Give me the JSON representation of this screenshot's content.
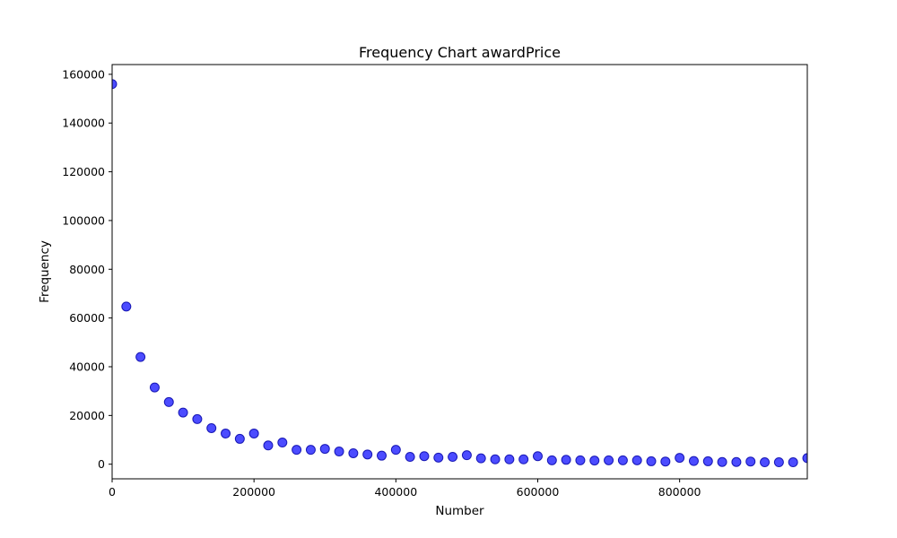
{
  "chart_data": {
    "type": "scatter",
    "title": "Frequency Chart awardPrice",
    "xlabel": "Number",
    "ylabel": "Frequency",
    "xlim": [
      0,
      980000
    ],
    "ylim": [
      -6000,
      164000
    ],
    "xticks": [
      0,
      200000,
      400000,
      600000,
      800000
    ],
    "xtick_labels": [
      "0",
      "200000",
      "400000",
      "600000",
      "800000"
    ],
    "yticks": [
      0,
      20000,
      40000,
      60000,
      80000,
      100000,
      120000,
      140000,
      160000
    ],
    "ytick_labels": [
      "0",
      "20000",
      "40000",
      "60000",
      "80000",
      "100000",
      "120000",
      "140000",
      "160000"
    ],
    "grid": false,
    "marker_color": "#0000ff",
    "marker_edge_color": "#0000a8",
    "points": [
      [
        0,
        156000
      ],
      [
        20000,
        64700
      ],
      [
        40000,
        44000
      ],
      [
        60000,
        31500
      ],
      [
        80000,
        25500
      ],
      [
        100000,
        21200
      ],
      [
        120000,
        18500
      ],
      [
        140000,
        14800
      ],
      [
        160000,
        12600
      ],
      [
        180000,
        10400
      ],
      [
        200000,
        12600
      ],
      [
        220000,
        7700
      ],
      [
        240000,
        8900
      ],
      [
        260000,
        5900
      ],
      [
        280000,
        5900
      ],
      [
        300000,
        6300
      ],
      [
        320000,
        5200
      ],
      [
        340000,
        4500
      ],
      [
        360000,
        4000
      ],
      [
        380000,
        3500
      ],
      [
        400000,
        5900
      ],
      [
        420000,
        3000
      ],
      [
        440000,
        3300
      ],
      [
        460000,
        2700
      ],
      [
        480000,
        3000
      ],
      [
        500000,
        3700
      ],
      [
        520000,
        2400
      ],
      [
        540000,
        2000
      ],
      [
        560000,
        2000
      ],
      [
        580000,
        2000
      ],
      [
        600000,
        3300
      ],
      [
        620000,
        1600
      ],
      [
        640000,
        1800
      ],
      [
        660000,
        1600
      ],
      [
        680000,
        1500
      ],
      [
        700000,
        1600
      ],
      [
        720000,
        1600
      ],
      [
        740000,
        1600
      ],
      [
        760000,
        1200
      ],
      [
        780000,
        1100
      ],
      [
        800000,
        2600
      ],
      [
        820000,
        1300
      ],
      [
        840000,
        1200
      ],
      [
        860000,
        900
      ],
      [
        880000,
        900
      ],
      [
        900000,
        1100
      ],
      [
        920000,
        800
      ],
      [
        940000,
        800
      ],
      [
        960000,
        800
      ],
      [
        980000,
        2500
      ]
    ]
  }
}
